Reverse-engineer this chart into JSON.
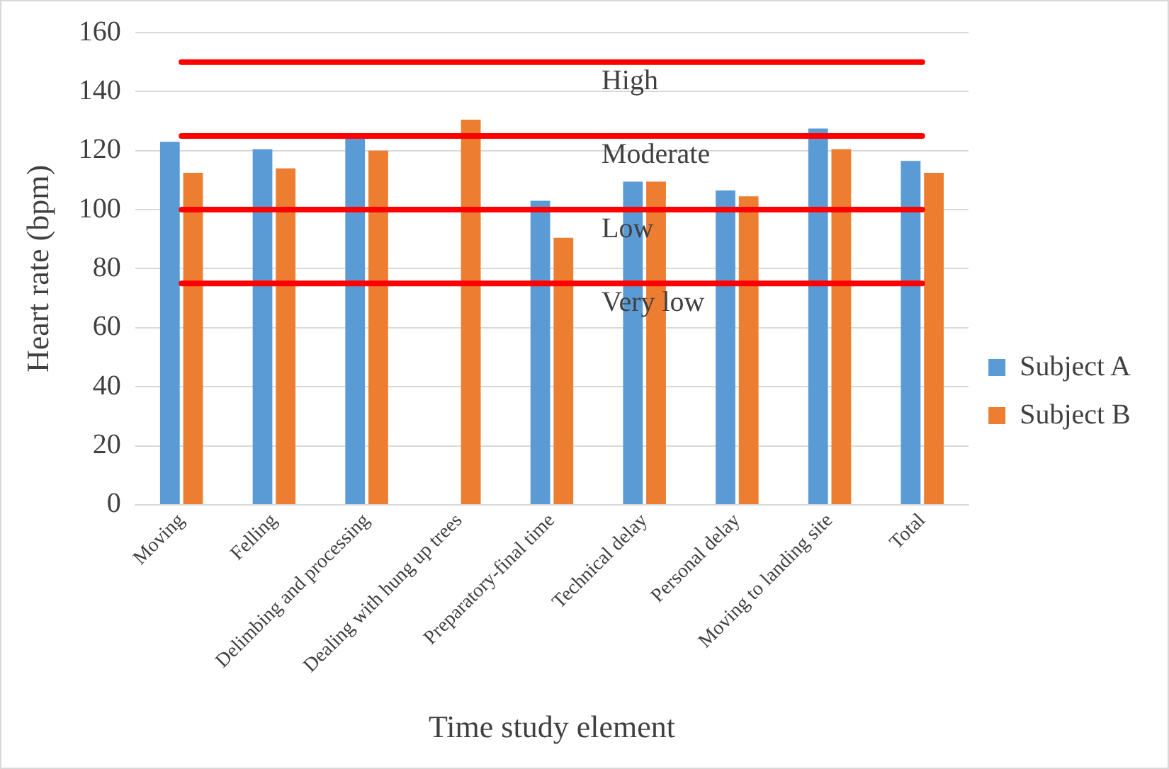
{
  "chart_data": {
    "type": "bar",
    "xlabel": "Time study element",
    "ylabel": "Heart rate (bpm)",
    "categories": [
      "Moving",
      "Felling",
      "Delimbing and processing",
      "Dealing with hung up trees",
      "Preparatory-final time",
      "Technical delay",
      "Personal delay",
      "Moving to landing site",
      "Total"
    ],
    "series": [
      {
        "name": "Subject A",
        "color": "#5b9bd5",
        "values": [
          123,
          120.5,
          124,
          null,
          103,
          109.5,
          106.5,
          127.5,
          116.5
        ]
      },
      {
        "name": "Subject B",
        "color": "#ed7d31",
        "values": [
          112.5,
          114,
          120,
          130.5,
          90.5,
          109.5,
          104.5,
          120.5,
          112.5
        ]
      }
    ],
    "ylim": [
      0,
      160
    ],
    "yticks": [
      0,
      20,
      40,
      60,
      80,
      100,
      120,
      140,
      160
    ],
    "grid": "y",
    "legend": "right",
    "ref_lines": [
      {
        "axis": "y",
        "value": 150,
        "label": "High",
        "color": "#ff0000"
      },
      {
        "axis": "y",
        "value": 125,
        "label": "Moderate",
        "color": "#ff0000"
      },
      {
        "axis": "y",
        "value": 100,
        "label": "Low",
        "color": "#ff0000"
      },
      {
        "axis": "y",
        "value": 75,
        "label": "Very low",
        "color": "#ff0000"
      }
    ]
  }
}
